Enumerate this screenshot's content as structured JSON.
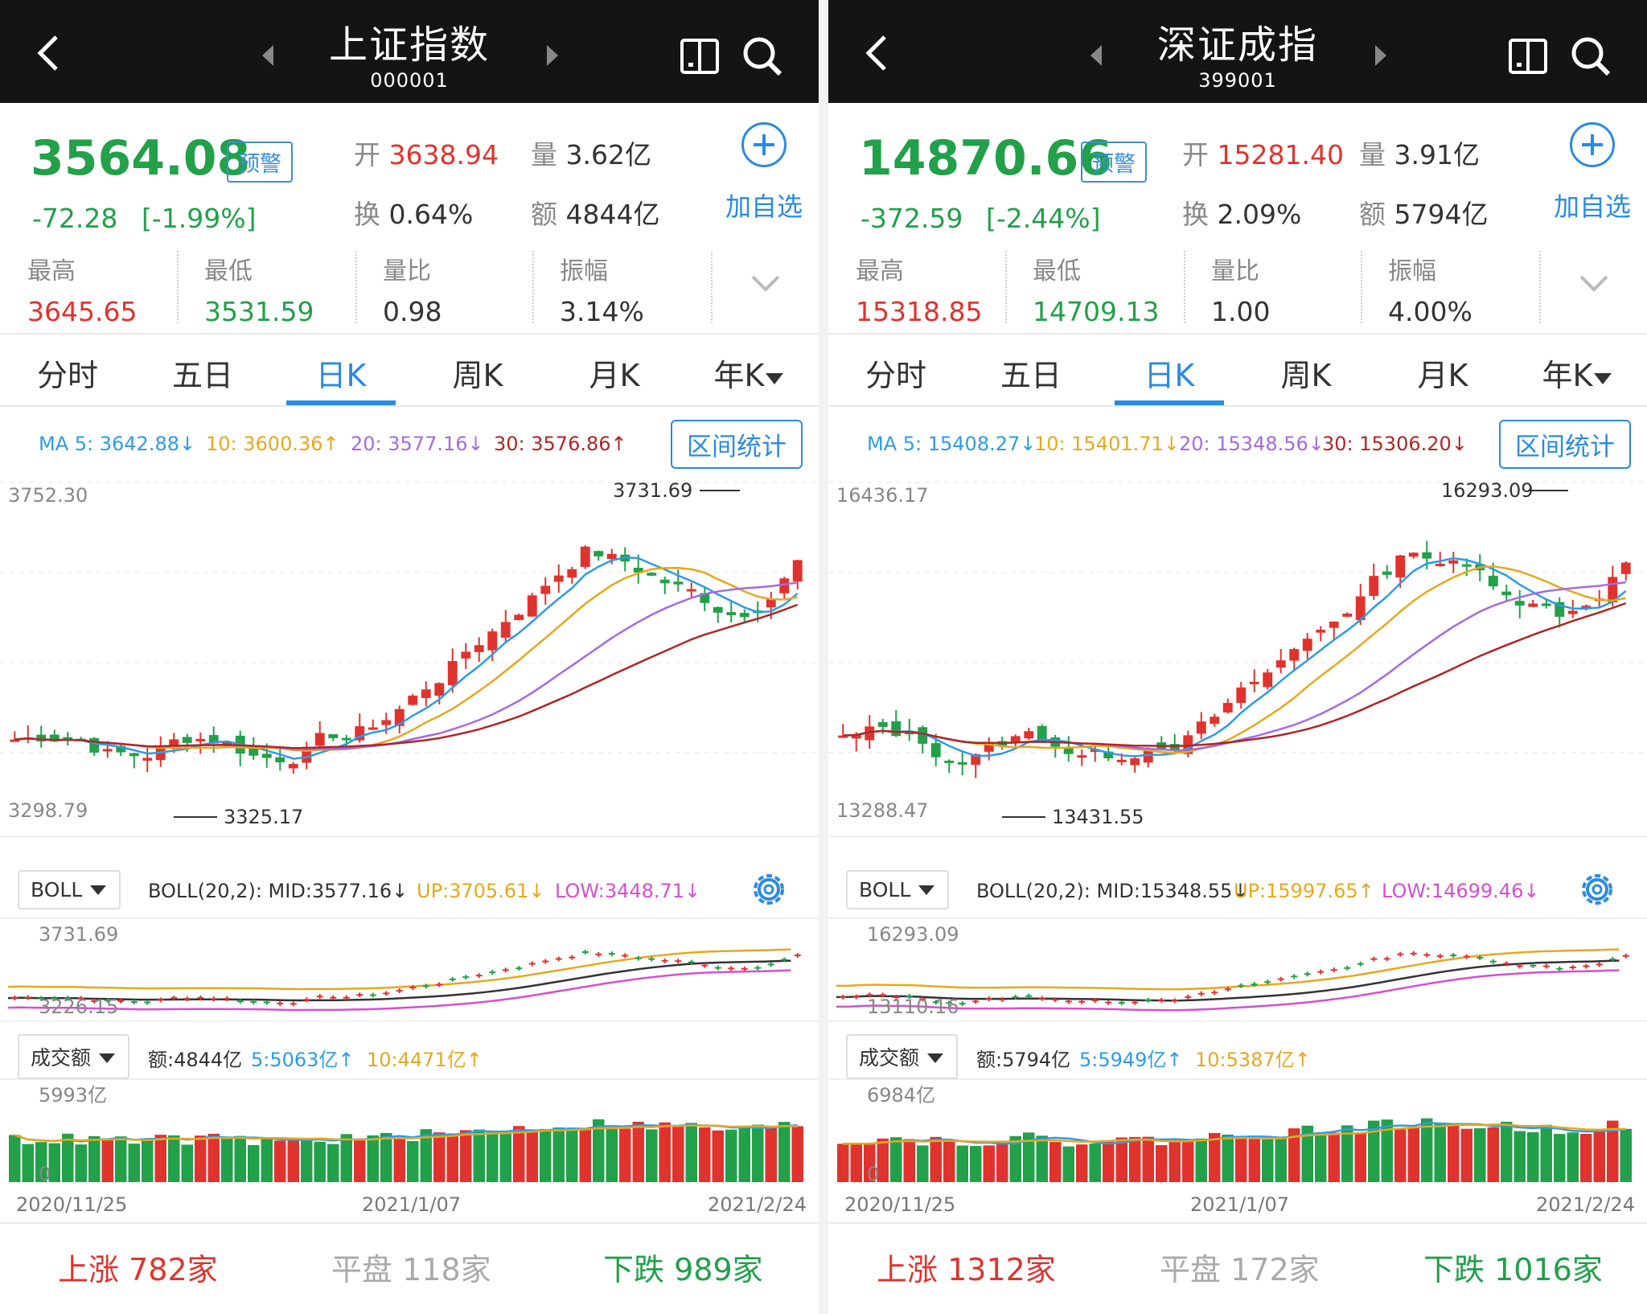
{
  "colors": {
    "up": "#e0332e",
    "down": "#22a04a",
    "accent": "#2a8be0",
    "ma5": "#2e9be8",
    "ma10": "#e6a81e",
    "ma20": "#a56be0",
    "ma30": "#b02626",
    "boll_mid": "#333333",
    "boll_up": "#e6a81e",
    "boll_low": "#d54fd0"
  },
  "panels": [
    {
      "title": "上证指数",
      "code": "000001",
      "price": "3564.08",
      "alert": "预警",
      "change": "-72.28",
      "change_pct": "[-1.99%]",
      "open_label": "开",
      "open": "3638.94",
      "vol_label": "量",
      "vol": "3.62亿",
      "turn_label": "换",
      "turn": "0.64%",
      "amt_label": "额",
      "amt": "4844亿",
      "add": "加自选",
      "stats": [
        {
          "label": "最高",
          "value": "3645.65",
          "color": "red"
        },
        {
          "label": "最低",
          "value": "3531.59",
          "color": "green"
        },
        {
          "label": "量比",
          "value": "0.98",
          "color": "dark"
        },
        {
          "label": "振幅",
          "value": "3.14%",
          "color": "dark"
        }
      ],
      "tabs": [
        "分时",
        "五日",
        "日K",
        "周K",
        "月K",
        "年K"
      ],
      "active_tab": 2,
      "ma": {
        "ma5": "MA 5: 3642.88↓",
        "ma10": "10: 3600.36↑",
        "ma20": "20: 3577.16↓",
        "ma30": "30: 3576.86↑"
      },
      "range_btn": "区间统计",
      "k_top": "3752.30",
      "k_bottom": "3298.79",
      "k_hi": "3731.69",
      "k_lo": "3325.17",
      "boll_select": "BOLL",
      "boll": {
        "mid": "BOLL(20,2): MID:3577.16↓",
        "up": "UP:3705.61↓",
        "low": "LOW:3448.71↓"
      },
      "boll_top": "3731.69",
      "boll_bottom": "3226.15",
      "vol_select": "成交额",
      "vol_ind": {
        "amt": "额:4844亿",
        "ma5": "5:5063亿↑",
        "ma10": "10:4471亿↑"
      },
      "vol_top": "5993亿",
      "vol_zero": "0",
      "dates": [
        "2020/11/25",
        "2021/1/07",
        "2021/2/24"
      ],
      "foot": {
        "up_label": "上涨",
        "up": "782家",
        "flat_label": "平盘",
        "flat": "118家",
        "down_label": "下跌",
        "down": "989家"
      },
      "seed": 7
    },
    {
      "title": "深证成指",
      "code": "399001",
      "price": "14870.66",
      "alert": "预警",
      "change": "-372.59",
      "change_pct": "[-2.44%]",
      "open_label": "开",
      "open": "15281.40",
      "vol_label": "量",
      "vol": "3.91亿",
      "turn_label": "换",
      "turn": "2.09%",
      "amt_label": "额",
      "amt": "5794亿",
      "add": "加自选",
      "stats": [
        {
          "label": "最高",
          "value": "15318.85",
          "color": "red"
        },
        {
          "label": "最低",
          "value": "14709.13",
          "color": "green"
        },
        {
          "label": "量比",
          "value": "1.00",
          "color": "dark"
        },
        {
          "label": "振幅",
          "value": "4.00%",
          "color": "dark"
        }
      ],
      "tabs": [
        "分时",
        "五日",
        "日K",
        "周K",
        "月K",
        "年K"
      ],
      "active_tab": 2,
      "ma": {
        "ma5": "MA 5: 15408.27↓",
        "ma10": "10: 15401.71↓",
        "ma20": "20: 15348.56↓",
        "ma30": "30: 15306.20↓"
      },
      "range_btn": "区间统计",
      "k_top": "16436.17",
      "k_bottom": "13288.47",
      "k_hi": "16293.09",
      "k_lo": "13431.55",
      "boll_select": "BOLL",
      "boll": {
        "mid": "BOLL(20,2): MID:15348.55↓",
        "up": "UP:15997.65↑",
        "low": "LOW:14699.46↓"
      },
      "boll_top": "16293.09",
      "boll_bottom": "13110.16",
      "vol_select": "成交额",
      "vol_ind": {
        "amt": "额:5794亿",
        "ma5": "5:5949亿↑",
        "ma10": "10:5387亿↑"
      },
      "vol_top": "6984亿",
      "vol_zero": "0",
      "dates": [
        "2020/11/25",
        "2021/1/07",
        "2021/2/24"
      ],
      "foot": {
        "up_label": "上涨",
        "up": "1312家",
        "flat_label": "平盘",
        "flat": "172家",
        "down_label": "下跌",
        "down": "1016家"
      },
      "seed": 13
    }
  ]
}
